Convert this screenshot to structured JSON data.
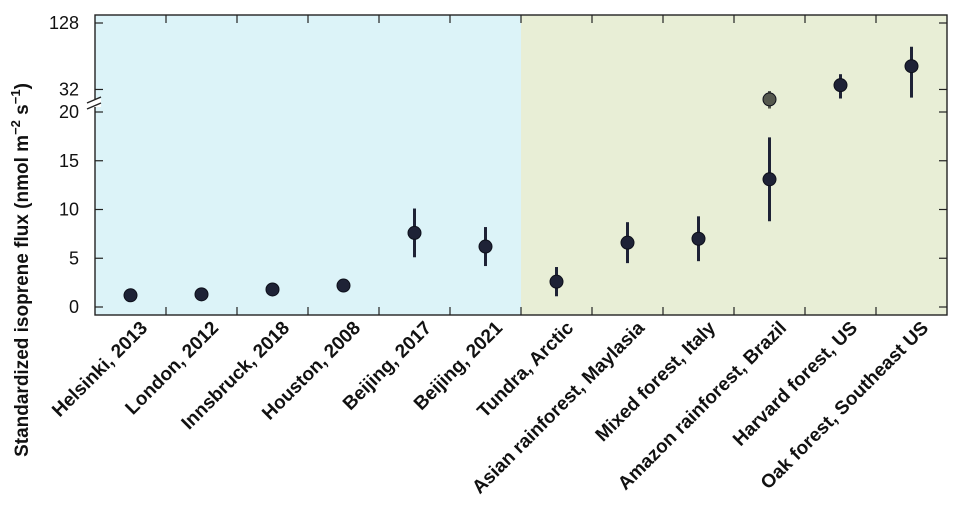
{
  "chart_data": {
    "type": "scatter",
    "ylabel": "Standardized isoprene flux (nmol m",
    "ylabel_exp1": "−2",
    "ylabel_mid": " s",
    "ylabel_exp2": "−1",
    "ylabel_end": ")",
    "y_scale_lower": "linear",
    "y_scale_upper": "log2",
    "ylim_lower": [
      0,
      20
    ],
    "ylim_upper": [
      20,
      128
    ],
    "yticks_lower": [
      0,
      5,
      10,
      15,
      20
    ],
    "yticks_upper": [
      32,
      128
    ],
    "axis_break": true,
    "grid": false,
    "categories": [
      "Helsinki, 2013",
      "London, 2012",
      "Innsbruck, 2018",
      "Houston, 2008",
      "Beijing, 2017",
      "Beijing, 2021",
      "Tundra, Arctic",
      "Asian rainforest, Maylasia",
      "Mixed forest, Italy",
      "Amazon rainforest, Brazil",
      "Harvard forest, US",
      "Oak forest, Southeast US"
    ],
    "regions": [
      {
        "from": 0,
        "to": 5,
        "color": "#dcf3f8"
      },
      {
        "from": 6,
        "to": 11,
        "color": "#e8eed6"
      }
    ],
    "points": [
      {
        "value": 1.2,
        "err_low": null,
        "err_high": null,
        "color": "#1e2236"
      },
      {
        "value": 1.3,
        "err_low": null,
        "err_high": null,
        "color": "#1e2236"
      },
      {
        "value": 1.8,
        "err_low": null,
        "err_high": null,
        "color": "#1e2236"
      },
      {
        "value": 2.2,
        "err_low": null,
        "err_high": null,
        "color": "#1e2236"
      },
      {
        "value": 7.6,
        "err_low": 5.1,
        "err_high": 10.1,
        "color": "#1e2236"
      },
      {
        "value": 6.2,
        "err_low": 4.2,
        "err_high": 8.2,
        "color": "#1e2236"
      },
      {
        "value": 2.6,
        "err_low": 1.1,
        "err_high": 4.1,
        "color": "#1e2236"
      },
      {
        "value": 6.6,
        "err_low": 4.5,
        "err_high": 8.7,
        "color": "#1e2236"
      },
      {
        "value": 7.0,
        "err_low": 4.7,
        "err_high": 9.3,
        "color": "#1e2236"
      },
      {
        "value": 13.1,
        "err_low": 8.8,
        "err_high": 17.4,
        "color": "#1e2236"
      },
      {
        "value": 26,
        "err_low": 21.5,
        "err_high": 31,
        "color": "#55584e"
      },
      {
        "value": 35,
        "err_low": 26.5,
        "err_high": 44,
        "color": "#1e2236"
      },
      {
        "value": 52,
        "err_low": 27,
        "err_high": 78,
        "color": "#1e2236"
      }
    ],
    "point_category_index": [
      0,
      1,
      2,
      3,
      4,
      5,
      6,
      7,
      8,
      9,
      9,
      10,
      11
    ]
  }
}
